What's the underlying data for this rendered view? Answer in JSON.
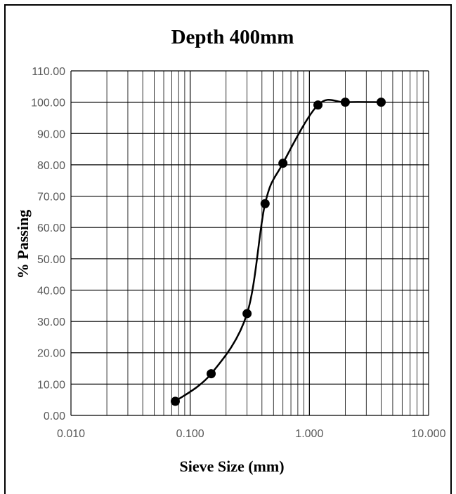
{
  "chart_data": {
    "type": "scatter",
    "title": "Depth 400mm",
    "xlabel": "Sieve Size (mm)",
    "ylabel": "% Passing",
    "x_scale": "log",
    "xlim": [
      0.01,
      10
    ],
    "ylim": [
      0,
      110
    ],
    "x_tick_labels": [
      "0.010",
      "0.100",
      "1.000",
      "10.000"
    ],
    "y_tick_labels": [
      "0.00",
      "10.00",
      "20.00",
      "30.00",
      "40.00",
      "50.00",
      "60.00",
      "70.00",
      "80.00",
      "90.00",
      "100.00",
      "110.00"
    ],
    "grid": true,
    "legend": false,
    "series": [
      {
        "x": [
          0.075,
          0.15,
          0.3,
          0.425,
          0.6,
          1.18,
          2.0,
          4.0
        ],
        "y": [
          4.5,
          13.3,
          32.5,
          67.6,
          80.5,
          99.1,
          100.0,
          100.0
        ],
        "color": "#000000",
        "marker": "circle",
        "line": "smooth"
      }
    ]
  }
}
